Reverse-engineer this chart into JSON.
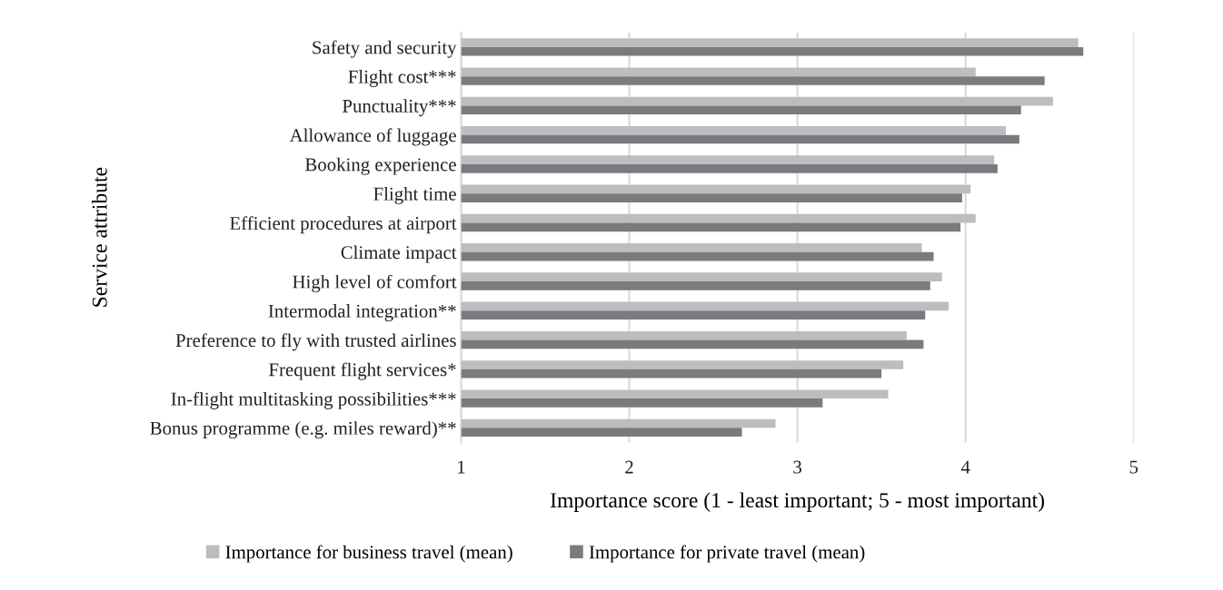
{
  "chart_data": {
    "type": "bar",
    "orientation": "horizontal",
    "xlabel": "Importance score (1 - least important; 5 - most important)",
    "ylabel": "Service attribute",
    "categories": [
      "Safety and security",
      "Flight cost***",
      "Punctuality***",
      "Allowance of luggage",
      "Booking experience",
      "Flight time",
      "Efficient procedures at airport",
      "Climate impact",
      "High level of comfort",
      "Intermodal integration**",
      "Preference to fly with trusted airlines",
      "Frequent flight services*",
      "In-flight multitasking possibilities***",
      "Bonus programme (e.g. miles reward)**"
    ],
    "series": [
      {
        "name": "Importance for business travel (mean)",
        "color": "#bdbdbf",
        "values": [
          4.67,
          4.06,
          4.52,
          4.24,
          4.17,
          4.03,
          4.06,
          3.74,
          3.86,
          3.9,
          3.65,
          3.63,
          3.54,
          2.87
        ]
      },
      {
        "name": "Importance for private travel (mean)",
        "color": "#7b7b7f",
        "values": [
          4.7,
          4.47,
          4.33,
          4.32,
          4.19,
          3.98,
          3.97,
          3.81,
          3.79,
          3.76,
          3.75,
          3.5,
          3.15,
          2.67
        ]
      }
    ],
    "xlim": [
      1,
      5
    ],
    "xticks": [
      1,
      2,
      3,
      4,
      5
    ],
    "grid": "x",
    "legend": "bottom"
  }
}
